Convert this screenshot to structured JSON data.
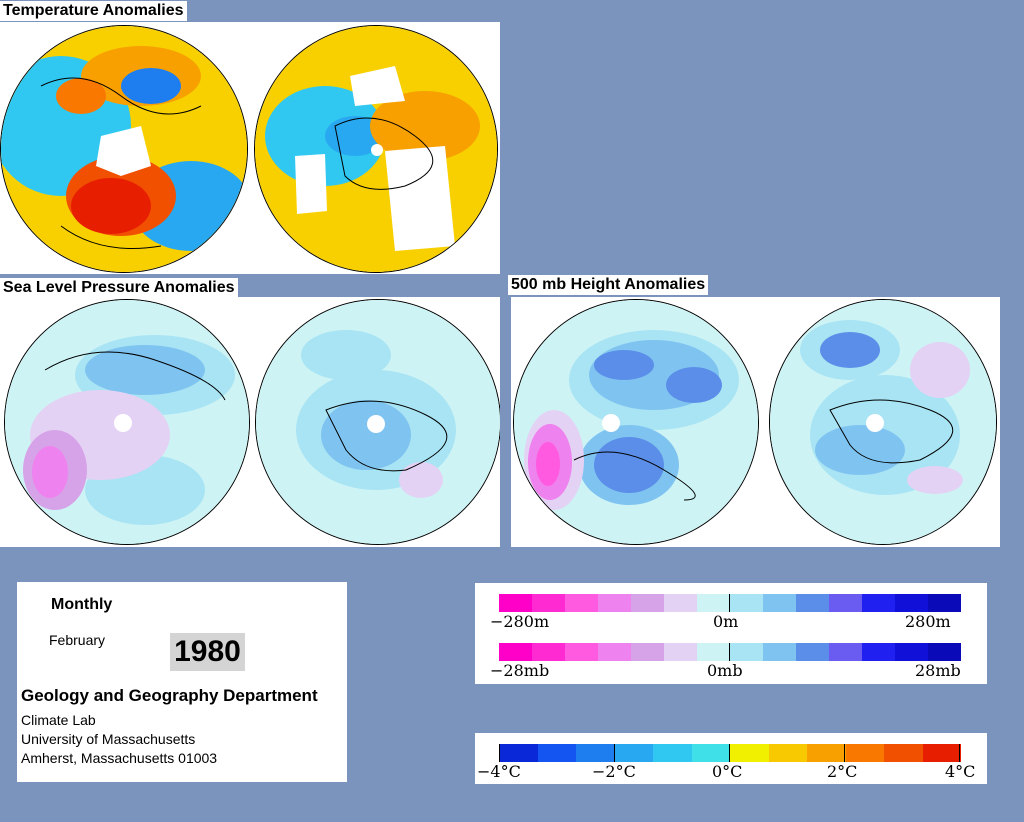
{
  "titles": {
    "temperature": "Temperature Anomalies",
    "slp": "Sea Level Pressure Anomalies",
    "height": "500 mb Height Anomalies"
  },
  "info": {
    "period": "Monthly",
    "month": "February",
    "year": "1980",
    "department": "Geology and Geography Department",
    "lab": "Climate Lab",
    "university": "University of Massachusetts",
    "address": "Amherst, Massachusetts 01003"
  },
  "legend_height": {
    "left": "−280m",
    "center": "0m",
    "right": "280m"
  },
  "legend_pressure": {
    "left": "−28mb",
    "center": "0mb",
    "right": "28mb"
  },
  "legend_temperature": {
    "t0": "−4°C",
    "t1": "−2°C",
    "t2": "0°C",
    "t3": "2°C",
    "t4": "4°C"
  },
  "colors": {
    "background": "#7b94bd",
    "pressure_scale": [
      "#ff00c8",
      "#ff2ad2",
      "#ff5ae0",
      "#ee82ee",
      "#d7a3e8",
      "#e4d2f4",
      "#cdf3f5",
      "#a9e4f4",
      "#7fc4f0",
      "#5b8ee8",
      "#6a5cf0",
      "#2020f0",
      "#1010d8",
      "#0a0ab8"
    ],
    "temperature_scale": [
      "#0a28d8",
      "#1454f0",
      "#1e7ef0",
      "#28a8f0",
      "#30c8f0",
      "#40e0e8",
      "#f0f000",
      "#f8c800",
      "#f8a000",
      "#f87800",
      "#f05000",
      "#e81e00"
    ]
  }
}
